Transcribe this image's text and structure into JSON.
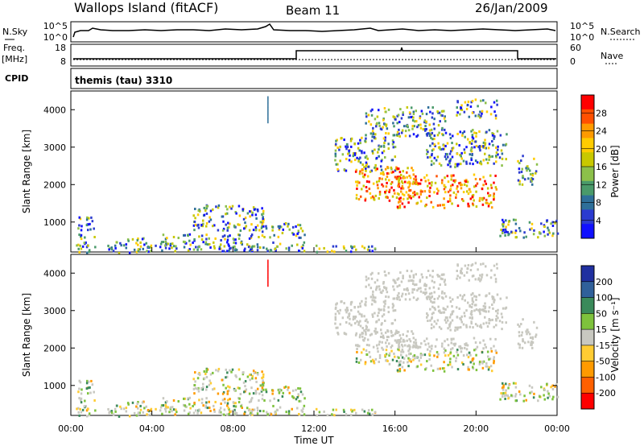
{
  "header": {
    "title": "Wallops Island (fitACF)",
    "beam": "Beam 11",
    "date": "26/Jan/2009"
  },
  "top_panels": {
    "nsky_label": "N.Sky",
    "nsky_ticks": [
      "10^5",
      "10^0"
    ],
    "nsearch_label": "N.Search",
    "nsearch_ticks": [
      "10^5",
      "10^0"
    ],
    "freq_label": "Freq.",
    "freq_unit": "[MHz]",
    "freq_ticks": [
      "18",
      "8"
    ],
    "nave_label": "Nave",
    "nave_ticks": [
      "60",
      "0"
    ],
    "cpid_label": "CPID",
    "cpid_value": "themis (tau) 3310"
  },
  "chart_data": [
    {
      "type": "heatmap",
      "name": "power",
      "ylabel": "Slant Range [km]",
      "ylim": [
        200,
        4500
      ],
      "yticks": [
        "1000",
        "2000",
        "3000",
        "4000"
      ],
      "xlim_hours": [
        0,
        24
      ],
      "colorbar_label": "Power [dB]",
      "colorbar_ticks": [
        "28",
        "24",
        "20",
        "16",
        "12",
        "8",
        "4"
      ],
      "colorbar_colors": [
        "#ff0000",
        "#ff5000",
        "#ff9a00",
        "#ffcc00",
        "#c8c800",
        "#8cc04a",
        "#4a9a6a",
        "#2e6f99",
        "#2b3bd0",
        "#1010ff"
      ]
    },
    {
      "type": "heatmap",
      "name": "velocity",
      "ylabel": "Slant Range [km]",
      "xlabel": "Time UT",
      "ylim": [
        200,
        4500
      ],
      "yticks": [
        "1000",
        "2000",
        "3000",
        "4000"
      ],
      "xticks": [
        "00:00",
        "04:00",
        "08:00",
        "12:00",
        "16:00",
        "20:00",
        "00:00"
      ],
      "colorbar_label": "Velocity [m s⁻¹]",
      "colorbar_ticks": [
        "200",
        "100",
        "50",
        "15",
        "-15",
        "-50",
        "-100",
        "-200"
      ],
      "colorbar_colors": [
        "#2030a0",
        "#30609a",
        "#3a8a5a",
        "#7ec23c",
        "#c8c8c0",
        "#ffcc33",
        "#ff9a00",
        "#ff6000",
        "#ff0000"
      ]
    }
  ]
}
